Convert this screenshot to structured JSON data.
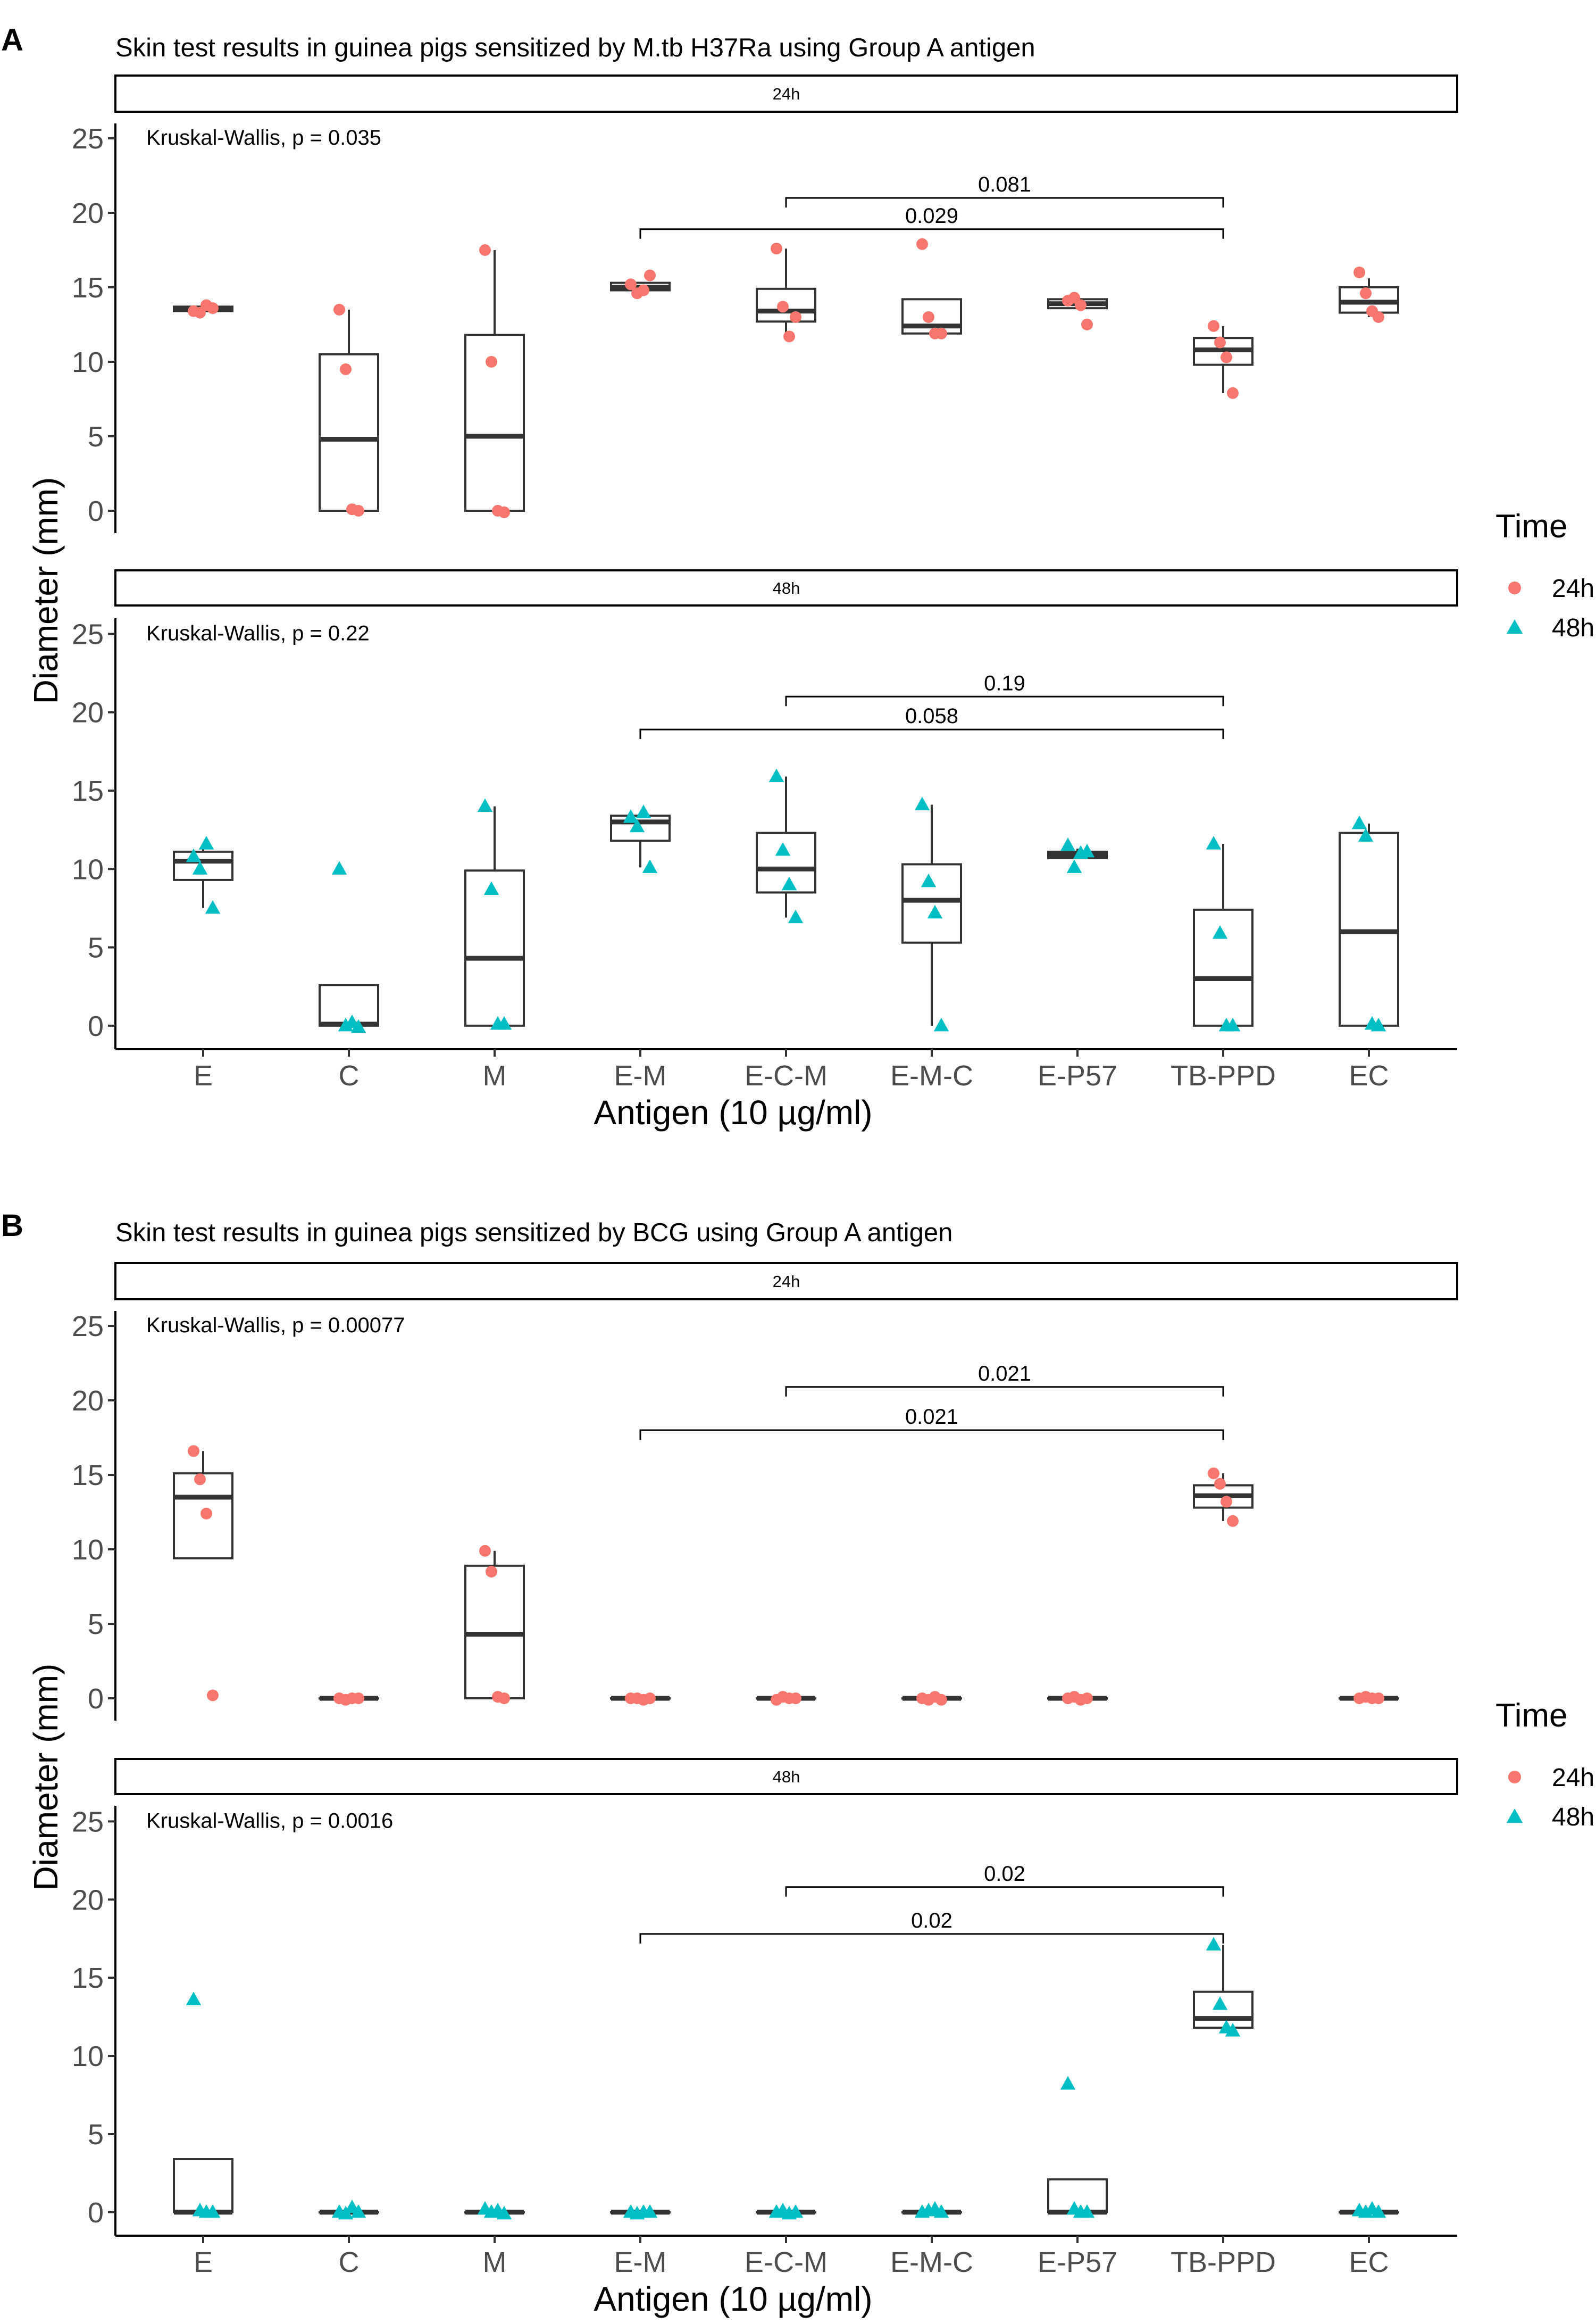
{
  "colors": {
    "h24": "#F8766D",
    "h48": "#00BFC4",
    "box": "#333333"
  },
  "x_categories": [
    "E",
    "C",
    "M",
    "E-M",
    "E-C-M",
    "E-M-C",
    "E-P57",
    "TB-PPD",
    "EC"
  ],
  "y_ticks": [
    0,
    5,
    10,
    15,
    20,
    25
  ],
  "ylim": [
    -1.5,
    26
  ],
  "xlabel": "Antigen (10 µg/ml)",
  "ylabel": "Diameter (mm)",
  "legend": {
    "title": "Time",
    "items": [
      "24h",
      "48h"
    ]
  },
  "chart_data": [
    {
      "type": "boxplot+jitter",
      "panel_label": "A",
      "title": "Skin test results in guinea pigs sensitized by M.tb H37Ra using Group A antigen",
      "facets": [
        {
          "strip": "24h",
          "time": "h24",
          "kw_text": "Kruskal-Wallis, p = 0.035",
          "points": [
            [
              13.4,
              13.3,
              13.8,
              13.6
            ],
            [
              13.5,
              9.5,
              0.1,
              0.0
            ],
            [
              17.5,
              10,
              0.0,
              -0.1
            ],
            [
              15.2,
              14.6,
              14.8,
              15.8
            ],
            [
              17.6,
              13.7,
              11.7,
              13.0
            ],
            [
              17.9,
              13.0,
              11.9,
              11.9
            ],
            [
              14.1,
              14.3,
              13.8,
              12.5
            ],
            [
              12.4,
              11.3,
              10.3,
              7.9
            ],
            [
              16.0,
              14.6,
              13.4,
              13.0
            ]
          ],
          "boxes": [
            {
              "q1": 13.4,
              "med": 13.55,
              "q3": 13.7,
              "lo": 13.3,
              "hi": 13.8
            },
            {
              "q1": 0.0,
              "med": 4.8,
              "q3": 10.5,
              "lo": 0.0,
              "hi": 13.5
            },
            {
              "q1": 0.0,
              "med": 5.0,
              "q3": 11.8,
              "lo": 0.0,
              "hi": 17.5
            },
            {
              "q1": 14.8,
              "med": 15.0,
              "q3": 15.3,
              "lo": 14.6,
              "hi": 15.3
            },
            {
              "q1": 12.7,
              "med": 13.4,
              "q3": 14.9,
              "lo": 11.7,
              "hi": 17.6
            },
            {
              "q1": 11.9,
              "med": 12.4,
              "q3": 14.2,
              "lo": 11.9,
              "hi": 14.2
            },
            {
              "q1": 13.6,
              "med": 13.9,
              "q3": 14.2,
              "lo": 13.6,
              "hi": 14.3
            },
            {
              "q1": 9.8,
              "med": 10.8,
              "q3": 11.6,
              "lo": 7.9,
              "hi": 12.4
            },
            {
              "q1": 13.3,
              "med": 14.0,
              "q3": 15.0,
              "lo": 13.0,
              "hi": 15.6
            }
          ],
          "brackets": [
            {
              "from": 4,
              "to": 7,
              "y": 21.0,
              "label": "0.081"
            },
            {
              "from": 3,
              "to": 7,
              "y": 18.9,
              "label": "0.029"
            }
          ]
        },
        {
          "strip": "48h",
          "time": "h48",
          "kw_text": "Kruskal-Wallis, p = 0.22",
          "points": [
            [
              10.8,
              10.0,
              11.6,
              7.5
            ],
            [
              10.0,
              0.0,
              0.2,
              -0.1
            ],
            [
              14.0,
              8.7,
              0.1,
              0.1
            ],
            [
              13.3,
              12.7,
              13.6,
              10.1
            ],
            [
              15.9,
              11.2,
              9.0,
              6.9
            ],
            [
              14.1,
              9.2,
              7.2,
              0.0
            ],
            [
              11.5,
              10.1,
              11.0,
              11.1
            ],
            [
              11.6,
              5.9,
              0.0,
              0.0
            ],
            [
              12.9,
              12.1,
              0.1,
              0.0
            ]
          ],
          "boxes": [
            {
              "q1": 9.3,
              "med": 10.5,
              "q3": 11.1,
              "lo": 7.5,
              "hi": 11.6
            },
            {
              "q1": 0.0,
              "med": 0.1,
              "q3": 2.6,
              "lo": 0.0,
              "hi": 2.6
            },
            {
              "q1": 0.0,
              "med": 4.3,
              "q3": 9.9,
              "lo": 0.0,
              "hi": 14.0
            },
            {
              "q1": 11.8,
              "med": 13.0,
              "q3": 13.4,
              "lo": 10.1,
              "hi": 13.6
            },
            {
              "q1": 8.5,
              "med": 10.0,
              "q3": 12.3,
              "lo": 6.9,
              "hi": 15.9
            },
            {
              "q1": 5.3,
              "med": 8.0,
              "q3": 10.3,
              "lo": 0.0,
              "hi": 14.1
            },
            {
              "q1": 10.7,
              "med": 10.9,
              "q3": 11.1,
              "lo": 10.7,
              "hi": 11.3
            },
            {
              "q1": 0.0,
              "med": 3.0,
              "q3": 7.4,
              "lo": 0.0,
              "hi": 11.6
            },
            {
              "q1": 0.0,
              "med": 6.0,
              "q3": 12.3,
              "lo": 0.0,
              "hi": 12.9
            }
          ],
          "brackets": [
            {
              "from": 4,
              "to": 7,
              "y": 21.0,
              "label": "0.19"
            },
            {
              "from": 3,
              "to": 7,
              "y": 18.9,
              "label": "0.058"
            }
          ]
        }
      ]
    },
    {
      "type": "boxplot+jitter",
      "panel_label": "B",
      "title": "Skin test results in guinea pigs sensitized by BCG using Group A antigen",
      "facets": [
        {
          "strip": "24h",
          "time": "h24",
          "kw_text": "Kruskal-Wallis, p = 0.00077",
          "points": [
            [
              16.6,
              14.7,
              12.4,
              0.2
            ],
            [
              0.0,
              -0.1,
              0.0,
              0.0
            ],
            [
              9.9,
              8.5,
              0.1,
              0.0
            ],
            [
              0.0,
              0.0,
              -0.1,
              0.0
            ],
            [
              -0.1,
              0.1,
              0.0,
              0.0
            ],
            [
              0.0,
              -0.1,
              0.1,
              -0.1
            ],
            [
              0.0,
              0.1,
              -0.1,
              0.0
            ],
            [
              15.1,
              14.4,
              13.2,
              11.9
            ],
            [
              0.0,
              0.1,
              0.0,
              0.0
            ]
          ],
          "boxes": [
            {
              "q1": 9.4,
              "med": 13.5,
              "q3": 15.1,
              "lo": 9.4,
              "hi": 16.6
            },
            {
              "q1": 0.0,
              "med": 0.0,
              "q3": 0.0,
              "lo": 0.0,
              "hi": 0.0
            },
            {
              "q1": 0.0,
              "med": 4.3,
              "q3": 8.9,
              "lo": 0.0,
              "hi": 9.9
            },
            {
              "q1": 0.0,
              "med": 0.0,
              "q3": 0.0,
              "lo": 0.0,
              "hi": 0.0
            },
            {
              "q1": 0.0,
              "med": 0.0,
              "q3": 0.0,
              "lo": 0.0,
              "hi": 0.0
            },
            {
              "q1": 0.0,
              "med": 0.0,
              "q3": 0.0,
              "lo": 0.0,
              "hi": 0.0
            },
            {
              "q1": 0.0,
              "med": 0.0,
              "q3": 0.0,
              "lo": 0.0,
              "hi": 0.0
            },
            {
              "q1": 12.8,
              "med": 13.6,
              "q3": 14.3,
              "lo": 11.9,
              "hi": 15.1
            },
            {
              "q1": 0.0,
              "med": 0.0,
              "q3": 0.0,
              "lo": 0.0,
              "hi": 0.0
            }
          ],
          "brackets": [
            {
              "from": 4,
              "to": 7,
              "y": 20.9,
              "label": "0.021"
            },
            {
              "from": 3,
              "to": 7,
              "y": 18.0,
              "label": "0.021"
            }
          ]
        },
        {
          "strip": "48h",
          "time": "h48",
          "kw_text": "Kruskal-Wallis, p = 0.0016",
          "points": [
            [
              13.6,
              0.1,
              0.0,
              0.0
            ],
            [
              0.0,
              -0.1,
              0.3,
              0.0
            ],
            [
              0.2,
              0.0,
              0.1,
              -0.1
            ],
            [
              0.0,
              -0.1,
              0.0,
              0.0
            ],
            [
              0.0,
              0.1,
              -0.1,
              0.0
            ],
            [
              0.0,
              0.1,
              0.2,
              0.0
            ],
            [
              8.2,
              0.2,
              0.0,
              0.0
            ],
            [
              17.1,
              13.3,
              11.8,
              11.6
            ],
            [
              0.1,
              0.0,
              0.2,
              0.0
            ]
          ],
          "boxes": [
            {
              "q1": 0.0,
              "med": 0.0,
              "q3": 3.4,
              "lo": 0.0,
              "hi": 3.4
            },
            {
              "q1": 0.0,
              "med": 0.0,
              "q3": 0.0,
              "lo": 0.0,
              "hi": 0.0
            },
            {
              "q1": 0.0,
              "med": 0.0,
              "q3": 0.0,
              "lo": 0.0,
              "hi": 0.0
            },
            {
              "q1": 0.0,
              "med": 0.0,
              "q3": 0.0,
              "lo": 0.0,
              "hi": 0.0
            },
            {
              "q1": 0.0,
              "med": 0.0,
              "q3": 0.0,
              "lo": 0.0,
              "hi": 0.0
            },
            {
              "q1": 0.0,
              "med": 0.0,
              "q3": 0.0,
              "lo": 0.0,
              "hi": 0.0
            },
            {
              "q1": 0.0,
              "med": 0.0,
              "q3": 2.1,
              "lo": 0.0,
              "hi": 2.1
            },
            {
              "q1": 11.8,
              "med": 12.4,
              "q3": 14.1,
              "lo": 11.6,
              "hi": 17.1
            },
            {
              "q1": 0.0,
              "med": 0.0,
              "q3": 0.0,
              "lo": 0.0,
              "hi": 0.0
            }
          ],
          "brackets": [
            {
              "from": 4,
              "to": 7,
              "y": 20.8,
              "label": "0.02"
            },
            {
              "from": 3,
              "to": 7,
              "y": 17.8,
              "label": "0.02"
            }
          ]
        }
      ]
    }
  ]
}
